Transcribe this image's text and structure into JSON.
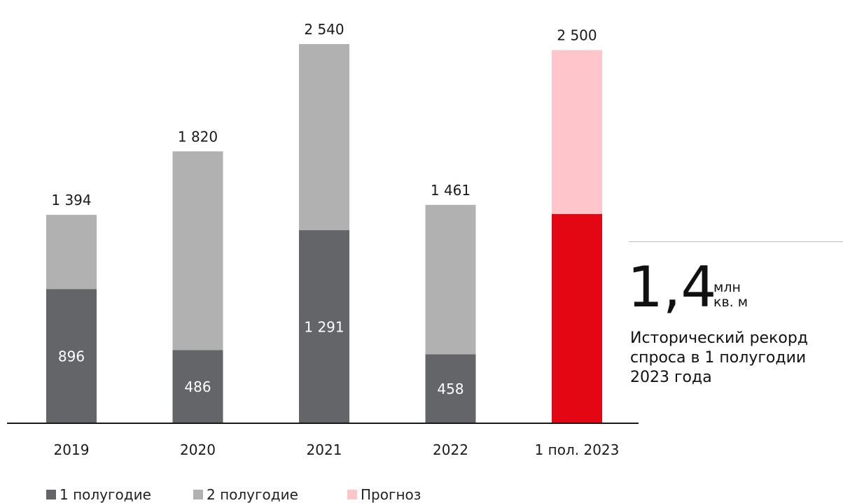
{
  "chart_data": {
    "type": "bar",
    "stacked": true,
    "categories": [
      "2019",
      "2020",
      "2021",
      "2022",
      "1 пол. 2023"
    ],
    "series": [
      {
        "name": "1 полугодие",
        "values": [
          896,
          486,
          1291,
          458,
          1400
        ],
        "labels": [
          "896",
          "486",
          "1 291",
          "458",
          ""
        ],
        "colors": [
          "#636569",
          "#636569",
          "#636569",
          "#636569",
          "#e30613"
        ]
      },
      {
        "name": "2 полугодие",
        "values": [
          498,
          1334,
          1249,
          1003,
          0
        ],
        "colors": [
          "#b1b1b2",
          "#b1b1b2",
          "#b1b1b2",
          "#b1b1b2",
          "#b1b1b2"
        ]
      },
      {
        "name": "Прогноз",
        "values": [
          0,
          0,
          0,
          0,
          1100
        ],
        "colors": [
          "#fec6cb",
          "#fec6cb",
          "#fec6cb",
          "#fec6cb",
          "#fec6cb"
        ]
      }
    ],
    "totals": [
      1394,
      1820,
      2540,
      1461,
      2500
    ],
    "total_labels": [
      "1 394",
      "1 820",
      "2 540",
      "1 461",
      "2 500"
    ],
    "ylim": [
      0,
      2540
    ],
    "grid": false,
    "legend_position": "bottom-left"
  },
  "legend": [
    {
      "label": "1 полугодие",
      "color": "#636569"
    },
    {
      "label": "2 полугодие",
      "color": "#b1b1b2"
    },
    {
      "label": "Прогноз",
      "color": "#fec6cb"
    }
  ],
  "callout": {
    "value": "1,4",
    "unit_line1": "млн",
    "unit_line2": "кв. м",
    "description": "Исторический рекорд спроса в 1 полугодии 2023 года"
  }
}
